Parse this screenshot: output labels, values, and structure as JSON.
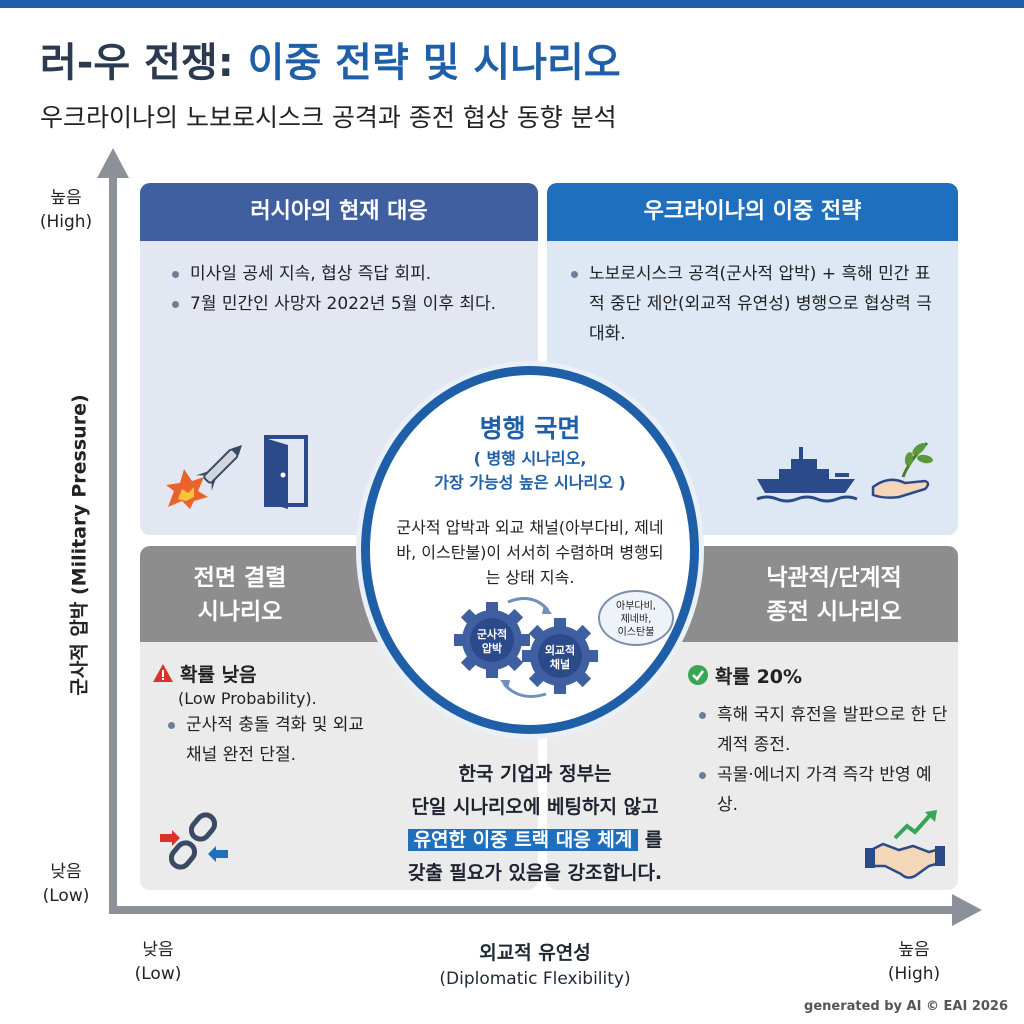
{
  "header": {
    "title_part1": "러-우 전쟁: ",
    "title_part2": "이중 전략 및 시나리오",
    "subtitle": "우크라이나의 노보로시스크 공격과 종전 협상 동향 분석"
  },
  "axes": {
    "y_label": "군사적 압박 (Military Pressure)",
    "y_high": "높음",
    "y_high_en": "(High)",
    "y_low": "낮음",
    "y_low_en": "(Low)",
    "x_label": "외교적 유연성",
    "x_label_en": "(Diplomatic Flexibility)",
    "x_low": "낮음",
    "x_low_en": "(Low)",
    "x_high": "높음",
    "x_high_en": "(High)"
  },
  "quadrants": {
    "top_left": {
      "title": "러시아의 현재 대응",
      "bullets": [
        "미사일 공세 지속, 협상 즉답 회피.",
        "7월 민간인 사망자 2022년 5월 이후 최다."
      ],
      "icons": [
        "missile-explosion-icon",
        "open-door-icon"
      ]
    },
    "top_right": {
      "title": "우크라이나의 이중 전략",
      "bullets": [
        "노보로시스크 공격(군사적 압박) + 흑해 민간 표적 중단 제안(외교적 유연성) 병행으로 협상력 극대화."
      ],
      "icons": [
        "warship-icon",
        "olive-branch-hand-icon"
      ]
    },
    "bottom_left": {
      "title_line1": "전면 결렬",
      "title_line2": "시나리오",
      "probability": "확률 낮음",
      "probability_note": "(Low Probability).",
      "bullets": [
        "군사적 충돌 격화 및 외교 채널 완전 단절."
      ],
      "icons": [
        "broken-chain-icon"
      ]
    },
    "bottom_right": {
      "title_line1": "낙관적/단계적",
      "title_line2": "종전 시나리오",
      "probability": "확률 20%",
      "bullets": [
        "흑해 국지 휴전을 발판으로 한 단계적 종전.",
        "곡물·에너지 가격 즉각 반영 예상."
      ],
      "icons": [
        "handshake-growth-icon"
      ]
    }
  },
  "center": {
    "title": "병행 국면",
    "sub_line1": "( 병행 시나리오,",
    "sub_line2": "가장 가능성 높은 시나리오 )",
    "body": "군사적 압박과 외교 채널(아부다비, 제네바, 이스탄불)이 서서히 수렴하며 병행되는 상태 지속.",
    "gear1_line1": "군사적",
    "gear1_line2": "압박",
    "gear2_line1": "외교적",
    "gear2_line2": "채널",
    "bubble_line1": "아부다비,",
    "bubble_line2": "제네바,",
    "bubble_line3": "이스탄불"
  },
  "korea_note": {
    "line1": "한국 기업과 정부는",
    "line2": "단일 시나리오에 베팅하지 않고",
    "highlight": "유연한 이중 트랙 대응 체계",
    "line3_suffix": " 를",
    "line4": "갖출 필요가 있음을 강조합니다."
  },
  "watermark": "generated by AI © EAI 2026",
  "colors": {
    "primary": "#1f5fa8",
    "tl_header": "#3f5fa1",
    "tr_header": "#1f6fbf",
    "bottom_header": "#8d8d8d",
    "warning": "#d9342b",
    "success": "#3aa655"
  }
}
